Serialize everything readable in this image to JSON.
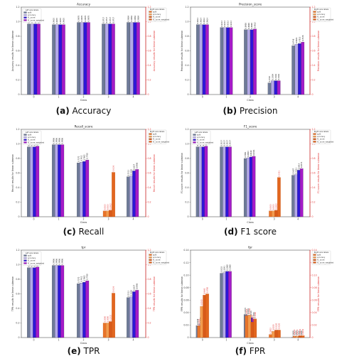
{
  "colors": {
    "split": "#6e7a99",
    "accuracy": "#b4a9e8",
    "f1_score": "#2d17d8",
    "f1_score_weighted": "#a51bc8",
    "accent_right": "#e2661f",
    "right_axis": "#e23a3a"
  },
  "chart_data": [
    {
      "type": "bar",
      "letter": "(a)",
      "caption": "Accuracy",
      "title": "Accuracy",
      "xlabel": "Class",
      "ylabel": "Accuracy: results for linear cutmean",
      "ylabel_right": "Accuracy: results for linear cutmean",
      "categories": [
        "0",
        "1",
        "2",
        "3",
        "4"
      ],
      "ylim": [
        0,
        1.2
      ],
      "yticks": [
        "0",
        "0.2",
        "0.4",
        "0.6",
        "0.8",
        "1.0",
        "1.2"
      ],
      "legend_left_title": "Left axis labels",
      "legend_right_title": "Right axis labels",
      "legend_left": [
        "split",
        "accuracy",
        "f1_score",
        "f1_score_weighted"
      ],
      "legend_right": [
        "split",
        "accuracy",
        "f1_score",
        "f1_score_weighted"
      ],
      "series": [
        {
          "key": "split",
          "values": [
            0.97,
            0.96,
            0.99,
            0.97,
            0.99
          ],
          "labels": [
            "0.9703",
            "0.9635",
            "0.9878",
            "0.9717",
            "0.9884"
          ]
        },
        {
          "key": "accuracy",
          "values": [
            0.97,
            0.96,
            0.99,
            0.97,
            0.99
          ],
          "labels": [
            "0.9703",
            "0.9635",
            "0.9878",
            "0.9717",
            "0.9884"
          ]
        },
        {
          "key": "f1_score",
          "values": [
            0.97,
            0.96,
            0.99,
            0.97,
            0.99
          ],
          "labels": [
            "0.9703",
            "0.9635",
            "0.9878",
            "0.9717",
            "0.9884"
          ]
        },
        {
          "key": "f1_score_weighted",
          "values": [
            0.97,
            0.96,
            0.99,
            0.97,
            0.99
          ],
          "labels": [
            "0.9703",
            "0.9635",
            "0.9878",
            "0.9717",
            "0.9884"
          ]
        }
      ],
      "right_series": []
    },
    {
      "type": "bar",
      "letter": "(b)",
      "caption": "Precision",
      "title": "Precision_score",
      "xlabel": "Class",
      "ylabel": "Precision: results for linear cutmean",
      "ylabel_right": "Precision: results for linear cutmean",
      "categories": [
        "0",
        "1",
        "2",
        "3",
        "4"
      ],
      "ylim": [
        0,
        1.2
      ],
      "yticks": [
        "0",
        "0.2",
        "0.4",
        "0.6",
        "0.8",
        "1.0",
        "1.2"
      ],
      "legend_left_title": "",
      "legend_right_title": "Right axis labels",
      "legend_left": [],
      "legend_right": [
        "split",
        "accuracy",
        "f1_score",
        "f1_score_weighted"
      ],
      "series": [
        {
          "key": "split",
          "values": [
            0.96,
            0.92,
            0.89,
            0.16,
            0.67
          ],
          "labels": [
            "0.9614",
            "0.9213",
            "0.8908",
            "0.1583",
            "0.6748"
          ]
        },
        {
          "key": "accuracy",
          "values": [
            0.96,
            0.92,
            0.89,
            0.19,
            0.69
          ],
          "labels": [
            "0.9614",
            "0.9213",
            "0.8908",
            "0.1904",
            "0.6924"
          ]
        },
        {
          "key": "f1_score",
          "values": [
            0.96,
            0.92,
            0.89,
            0.19,
            0.7
          ],
          "labels": [
            "0.9614",
            "0.9213",
            "0.8908",
            "0.1904",
            "0.7013"
          ]
        },
        {
          "key": "f1_score_weighted",
          "values": [
            0.96,
            0.92,
            0.9,
            0.19,
            0.72
          ],
          "labels": [
            "0.9614",
            "0.9213",
            "0.9012",
            "0.1904",
            "0.7238"
          ]
        }
      ],
      "right_series": []
    },
    {
      "type": "bar",
      "letter": "(c)",
      "caption": "Recall",
      "title": "Recall_score",
      "xlabel": "Class",
      "ylabel": "Recall: results for linear cutmean",
      "ylabel_right": "Recall: results for linear cutmean",
      "categories": [
        "0",
        "1",
        "2",
        "3",
        "4"
      ],
      "ylim": [
        0,
        1.2
      ],
      "yticks": [
        "0",
        "0.2",
        "0.4",
        "0.6",
        "0.8",
        "1.0",
        "1.2"
      ],
      "legend_left_title": "Left axis labels",
      "legend_right_title": "Right axis labels",
      "legend_left": [
        "split",
        "accuracy",
        "f1_score",
        "f1_score_weighted"
      ],
      "legend_right": [
        "split",
        "accuracy",
        "f1_score",
        "f1_score_weighted"
      ],
      "series": [
        {
          "key": "split",
          "values": [
            0.96,
            0.99,
            0.74,
            0,
            0.55
          ],
          "labels": [
            "0.9618",
            "0.9906",
            "0.7372",
            "",
            "0.5513"
          ]
        },
        {
          "key": "accuracy",
          "values": [
            0.96,
            0.99,
            0.75,
            0,
            0.56
          ],
          "labels": [
            "0.9618",
            "0.9906",
            "0.7452",
            "",
            "0.5602"
          ]
        },
        {
          "key": "f1_score",
          "values": [
            0.96,
            0.99,
            0.76,
            0,
            0.63
          ],
          "labels": [
            "0.9642",
            "0.9906",
            "0.7602",
            "",
            "0.6327"
          ]
        },
        {
          "key": "f1_score_weighted",
          "values": [
            0.97,
            0.99,
            0.78,
            0,
            0.65
          ],
          "labels": [
            "0.9667",
            "0.9906",
            "0.7760",
            "",
            "0.6486"
          ]
        }
      ],
      "right_series": [
        {
          "key": "split",
          "values": [
            0,
            0,
            0,
            0.08,
            0
          ],
          "labels": [
            "",
            "",
            "",
            "0.0833",
            ""
          ]
        },
        {
          "key": "accuracy",
          "values": [
            0,
            0,
            0,
            0.08,
            0
          ],
          "labels": [
            "",
            "",
            "",
            "0.0833",
            ""
          ]
        },
        {
          "key": "f1_score",
          "values": [
            0,
            0,
            0,
            0.09,
            0
          ],
          "labels": [
            "",
            "",
            "",
            "0.0952",
            ""
          ]
        },
        {
          "key": "f1_score_weighted",
          "values": [
            0,
            0,
            0,
            0.61,
            0
          ],
          "labels": [
            "",
            "",
            "",
            "0.6136",
            ""
          ]
        }
      ]
    },
    {
      "type": "bar",
      "letter": "(d)",
      "caption": "F1 score",
      "title": "F1_score",
      "xlabel": "Class",
      "ylabel": "F1 score: results for linear cutmean",
      "ylabel_right": "F1 score: results for linear cutmean",
      "categories": [
        "0",
        "1",
        "2",
        "3",
        "4"
      ],
      "ylim": [
        0,
        1.2
      ],
      "yticks": [
        "0",
        "0.2",
        "0.4",
        "0.6",
        "0.8",
        "1.0",
        "1.2"
      ],
      "legend_left_title": "Left axis labels",
      "legend_right_title": "Right axis labels",
      "legend_left": [
        "split",
        "accuracy",
        "f1_score",
        "f1_score_weighted"
      ],
      "legend_right": [
        "split",
        "accuracy",
        "f1_score",
        "f1_score_weighted"
      ],
      "series": [
        {
          "key": "split",
          "values": [
            0.96,
            0.96,
            0.8,
            0,
            0.57
          ],
          "labels": [
            "0.9616",
            "0.9557",
            "0.7991",
            "",
            "0.5697"
          ]
        },
        {
          "key": "accuracy",
          "values": [
            0.96,
            0.96,
            0.81,
            0,
            0.58
          ],
          "labels": [
            "0.9616",
            "0.9557",
            "0.8093",
            "",
            "0.5811"
          ]
        },
        {
          "key": "f1_score",
          "values": [
            0.96,
            0.96,
            0.82,
            0,
            0.64
          ],
          "labels": [
            "0.9628",
            "0.9557",
            "0.8182",
            "",
            "0.6414"
          ]
        },
        {
          "key": "f1_score_weighted",
          "values": [
            0.97,
            0.96,
            0.83,
            0,
            0.66
          ],
          "labels": [
            "0.9652",
            "0.9557",
            "0.8321",
            "",
            "0.6574"
          ]
        }
      ],
      "right_series": [
        {
          "key": "split",
          "values": [
            0,
            0,
            0,
            0.08,
            0
          ],
          "labels": [
            "",
            "",
            "",
            "0.0833",
            ""
          ]
        },
        {
          "key": "accuracy",
          "values": [
            0,
            0,
            0,
            0.08,
            0
          ],
          "labels": [
            "",
            "",
            "",
            "0.0833",
            ""
          ]
        },
        {
          "key": "f1_score",
          "values": [
            0,
            0,
            0,
            0.09,
            0
          ],
          "labels": [
            "",
            "",
            "",
            "0.0952",
            ""
          ]
        },
        {
          "key": "f1_score_weighted",
          "values": [
            0,
            0,
            0,
            0.54,
            0
          ],
          "labels": [
            "",
            "",
            "",
            "0.5421",
            ""
          ]
        }
      ]
    },
    {
      "type": "bar",
      "letter": "(e)",
      "caption": "TPR",
      "title": "tpr",
      "xlabel": "Class",
      "ylabel": "TPR: results for linear cutmean",
      "ylabel_right": "TPR: results for linear cutmean",
      "categories": [
        "0",
        "1",
        "2",
        "3",
        "4"
      ],
      "ylim": [
        0,
        1.2
      ],
      "yticks": [
        "0",
        "0.2",
        "0.4",
        "0.6",
        "0.8",
        "1.0",
        "1.2"
      ],
      "legend_left_title": "Left axis labels",
      "legend_right_title": "Right axis labels",
      "legend_left": [
        "split",
        "accuracy",
        "f1_score",
        "f1_score_weighted"
      ],
      "legend_right": [
        "split",
        "accuracy",
        "f1_score",
        "f1_score_weighted"
      ],
      "series": [
        {
          "key": "split",
          "values": [
            0.96,
            0.99,
            0.74,
            0,
            0.55
          ],
          "labels": [
            "0.9618",
            "0.9906",
            "0.7372",
            "",
            "0.5513"
          ]
        },
        {
          "key": "accuracy",
          "values": [
            0.96,
            0.99,
            0.75,
            0,
            0.56
          ],
          "labels": [
            "0.9618",
            "0.9906",
            "0.7452",
            "",
            "0.5602"
          ]
        },
        {
          "key": "f1_score",
          "values": [
            0.96,
            0.99,
            0.76,
            0,
            0.63
          ],
          "labels": [
            "0.9642",
            "0.9906",
            "0.7602",
            "",
            "0.6327"
          ]
        },
        {
          "key": "f1_score_weighted",
          "values": [
            0.97,
            0.99,
            0.78,
            0,
            0.65
          ],
          "labels": [
            "0.9667",
            "0.9906",
            "0.7760",
            "",
            "0.6486"
          ]
        }
      ],
      "right_series": [
        {
          "key": "split",
          "values": [
            0,
            0,
            0,
            0.2,
            0
          ],
          "labels": [
            "",
            "",
            "",
            "0.2000",
            ""
          ]
        },
        {
          "key": "accuracy",
          "values": [
            0,
            0,
            0,
            0.2,
            0
          ],
          "labels": [
            "",
            "",
            "",
            "0.2000",
            ""
          ]
        },
        {
          "key": "f1_score",
          "values": [
            0,
            0,
            0,
            0.22,
            0
          ],
          "labels": [
            "",
            "",
            "",
            "0.2222",
            ""
          ]
        },
        {
          "key": "f1_score_weighted",
          "values": [
            0,
            0,
            0,
            0.61,
            0
          ],
          "labels": [
            "",
            "",
            "",
            "0.6136",
            ""
          ]
        }
      ]
    },
    {
      "type": "bar",
      "letter": "(f)",
      "caption": "FPR",
      "title": "fpr",
      "xlabel": "Class",
      "ylabel": "FPR: results for linear cutmean",
      "ylabel_right": "FPR: results for linear cutmean",
      "categories": [
        "0",
        "1",
        "2",
        "3",
        "4"
      ],
      "ylim": [
        0,
        0.14
      ],
      "yticks": [
        "0",
        "0.02",
        "0.04",
        "0.06",
        "0.08",
        "0.10",
        "0.12",
        "0.14"
      ],
      "legend_left_title": "",
      "legend_right_title": "Right axis labels",
      "legend_left": [],
      "legend_right": [
        "split",
        "accuracy",
        "f1_score",
        "f1_score_weighted"
      ],
      "series": [
        {
          "key": "split",
          "values": [
            0.019,
            0.103,
            0.037,
            0.0,
            0.0005
          ],
          "labels": [
            "0.0188",
            "0.1033",
            "0.0372",
            "",
            "0.0005"
          ]
        },
        {
          "key": "accuracy",
          "values": [
            0.022,
            0.104,
            0.036,
            0.0,
            0.0005
          ],
          "labels": [
            "0.0225",
            "0.1041",
            "0.0361",
            "",
            "0.0005"
          ]
        },
        {
          "key": "f1_score",
          "values": [
            0.02,
            0.106,
            0.032,
            0.0,
            0.0005
          ],
          "labels": [
            "0.0203",
            "0.1060",
            "0.0318",
            "",
            "0.0005"
          ]
        },
        {
          "key": "f1_score_weighted",
          "values": [
            0.021,
            0.106,
            0.03,
            0.0,
            0.0005
          ],
          "labels": [
            "0.0210",
            "0.1060",
            "0.0301",
            "",
            "0.0005"
          ]
        }
      ],
      "right_series": [
        {
          "key": "split",
          "values": [
            0.019,
            0,
            0.035,
            0.005,
            0.002
          ],
          "labels": [
            "0.0193",
            "",
            "0.0350",
            "0.0052",
            "0.0016"
          ]
        },
        {
          "key": "accuracy",
          "values": [
            0.05,
            0,
            0.036,
            0.01,
            0.002
          ],
          "labels": [
            "0.0500",
            "",
            "0.0360",
            "0.0100",
            "0.0018"
          ]
        },
        {
          "key": "f1_score",
          "values": [
            0.068,
            0,
            0.025,
            0.012,
            0.003
          ],
          "labels": [
            "0.0680",
            "",
            "0.0250",
            "0.0120",
            "0.0026"
          ]
        },
        {
          "key": "f1_score_weighted",
          "values": [
            0.07,
            0,
            0.03,
            0.012,
            0.003
          ],
          "labels": [
            "0.0700",
            "",
            "0.0300",
            "0.0120",
            "0.0030"
          ]
        }
      ]
    }
  ]
}
